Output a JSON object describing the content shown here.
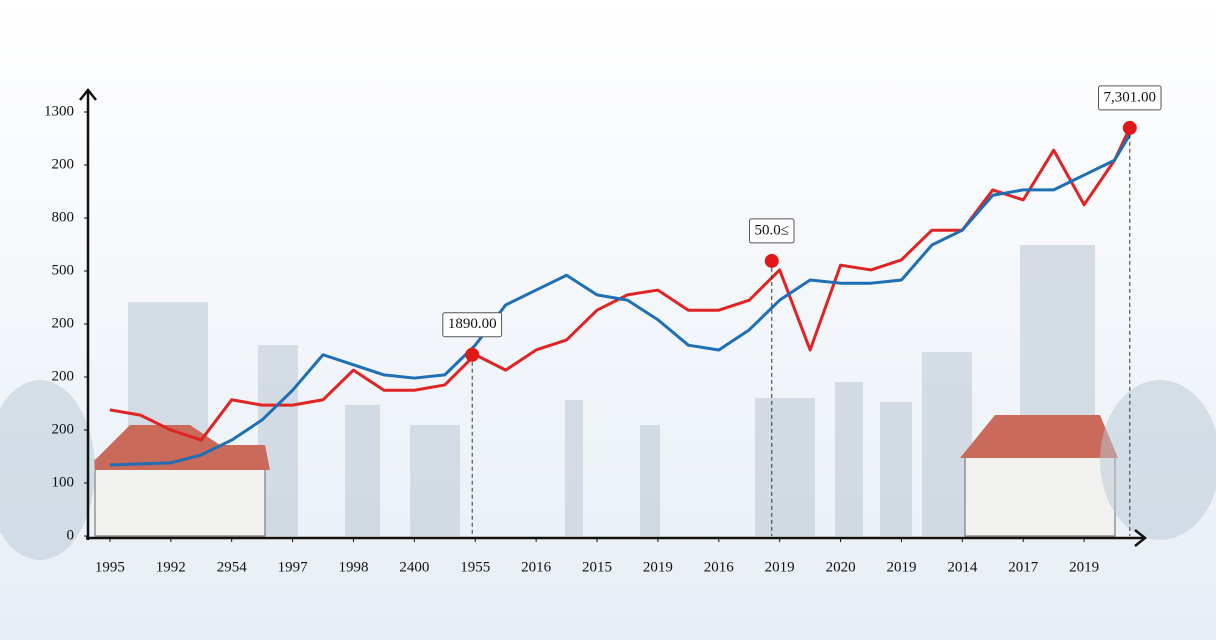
{
  "chart_data": {
    "type": "line",
    "x": [
      0,
      0.5,
      1,
      1.5,
      2,
      2.5,
      3,
      3.5,
      4,
      4.5,
      5,
      5.5,
      6,
      6.5,
      7,
      7.5,
      8,
      8.5,
      9,
      9.5,
      10,
      10.5,
      11,
      11.5,
      12,
      12.5,
      13,
      13.5,
      14,
      14.5,
      15,
      15.5,
      16,
      16.5,
      16.75
    ],
    "xlim": [
      -0.36,
      17
    ],
    "xticks": [
      {
        "value": 0,
        "label": "1995"
      },
      {
        "value": 1,
        "label": "1992"
      },
      {
        "value": 2,
        "label": "2954"
      },
      {
        "value": 3,
        "label": "1997"
      },
      {
        "value": 4,
        "label": "1998"
      },
      {
        "value": 5,
        "label": "2400"
      },
      {
        "value": 6,
        "label": "1955"
      },
      {
        "value": 7,
        "label": "2016"
      },
      {
        "value": 8,
        "label": "2015"
      },
      {
        "value": 9,
        "label": "2019"
      },
      {
        "value": 10,
        "label": "2016"
      },
      {
        "value": 11,
        "label": "2019"
      },
      {
        "value": 12,
        "label": "2020"
      },
      {
        "value": 13,
        "label": "2019"
      },
      {
        "value": 14,
        "label": "2014"
      },
      {
        "value": 15,
        "label": "2017"
      },
      {
        "value": 16,
        "label": "2019"
      }
    ],
    "ylim": [
      0,
      800
    ],
    "yticks": [
      0,
      100,
      200,
      {
        "value": 300,
        "label": "200"
      },
      {
        "value": 400,
        "label": "200"
      },
      500,
      {
        "value": 600,
        "label": "800"
      },
      {
        "value": 700,
        "label": "200"
      },
      {
        "value": 800,
        "label": "1300"
      }
    ],
    "series": [
      {
        "color": "#e02424",
        "values": [
          238,
          228,
          200,
          181,
          257,
          247,
          247,
          257,
          313,
          275,
          275,
          285,
          342,
          313,
          351,
          370,
          426,
          455,
          464,
          426,
          426,
          445,
          502,
          351,
          511,
          502,
          521,
          577,
          577,
          653,
          634,
          728,
          625,
          709,
          770
        ]
      },
      {
        "color": "#1f6fb5",
        "values": [
          134,
          136,
          138,
          153,
          181,
          219,
          275,
          342,
          323,
          304,
          298,
          304,
          360,
          436,
          464,
          492,
          455,
          445,
          408,
          360,
          351,
          389,
          445,
          483,
          477,
          477,
          483,
          549,
          577,
          643,
          653,
          653,
          681,
          709,
          757
        ]
      }
    ],
    "annotations": [
      {
        "text": "1890.00",
        "x": 5.95,
        "y": 342
      },
      {
        "text": "50.0≤",
        "x": 10.87,
        "y": 519
      },
      {
        "text": "7,301.00",
        "x": 16.75,
        "y": 770
      }
    ]
  }
}
